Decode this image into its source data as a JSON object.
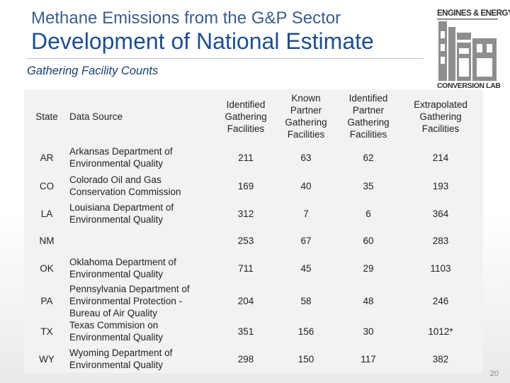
{
  "slide": {
    "subtitle": "Methane Emissions from the G&P Sector",
    "title": "Development of National Estimate",
    "section_heading": "Gathering Facility Counts",
    "page_number": "20"
  },
  "logo": {
    "top_text": "ENGINES & ENERGY",
    "bottom_text": "CONVERSION LAB"
  },
  "table": {
    "headers": {
      "state": "State",
      "source": "Data Source",
      "identified": "Identified Gathering Facilities",
      "known_partner": "Known Partner Gathering Facilities",
      "identified_partner": "Identified Partner Gathering Facilities",
      "extrapolated": "Extrapolated Gathering Facilities"
    },
    "rows": [
      {
        "state": "AR",
        "source": "Arkansas Department of Environmental Quality",
        "identified": "211",
        "known_partner": "63",
        "identified_partner": "62",
        "extrapolated": "214"
      },
      {
        "state": "CO",
        "source": "Colorado Oil and Gas Conservation Commission",
        "identified": "169",
        "known_partner": "40",
        "identified_partner": "35",
        "extrapolated": "193"
      },
      {
        "state": "LA",
        "source": "Louisiana Department of Environmental Quality",
        "identified": "312",
        "known_partner": "7",
        "identified_partner": "6",
        "extrapolated": "364"
      },
      {
        "state": "NM",
        "source": "",
        "identified": "253",
        "known_partner": "67",
        "identified_partner": "60",
        "extrapolated": "283"
      },
      {
        "state": "OK",
        "source": "Oklahoma Department of Environmental Quality",
        "identified": "711",
        "known_partner": "45",
        "identified_partner": "29",
        "extrapolated": "1103"
      },
      {
        "state": "PA",
        "source": "Pennsylvania Department of Environmental Protection - Bureau of Air Quality",
        "identified": "204",
        "known_partner": "58",
        "identified_partner": "48",
        "extrapolated": "246"
      },
      {
        "state": "TX",
        "source": "Texas Commision on Environmental Quality",
        "identified": "351",
        "known_partner": "156",
        "identified_partner": "30",
        "extrapolated": "1012*"
      },
      {
        "state": "WY",
        "source": "Wyoming Department of Environmental Quality",
        "identified": "298",
        "known_partner": "150",
        "identified_partner": "117",
        "extrapolated": "382"
      }
    ]
  }
}
